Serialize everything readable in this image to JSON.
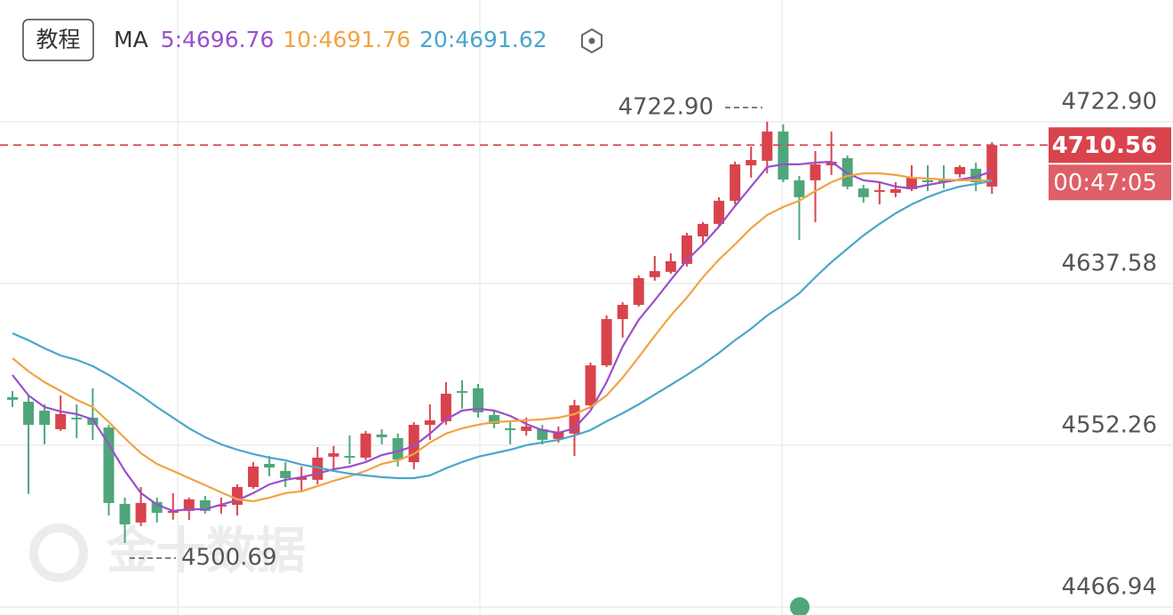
{
  "chart_data": {
    "type": "candlestick",
    "button": "教程",
    "ma_label": "MA",
    "open": [
      4577.6,
      4575.2,
      4570.5,
      4560.7,
      4566.8,
      4566.8,
      4561.6,
      4521.3,
      4511.5,
      4522.3,
      4516.6,
      4517.6,
      4523.2,
      4519.9,
      4520.8,
      4530.2,
      4542.4,
      4538.7,
      4534.0,
      4534.0,
      4546.2,
      4546.6,
      4545.7,
      4557.9,
      4556.0,
      4543.3,
      4563.0,
      4564.9,
      4580.8,
      4582.3,
      4568.2,
      4561.2,
      4559.8,
      4560.7,
      4555.6,
      4558.4,
      4573.3,
      4594.4,
      4618.8,
      4626.3,
      4640.9,
      4643.7,
      4647.9,
      4662.4,
      4669.0,
      4681.2,
      4699.9,
      4702.3,
      4717.7,
      4692.0,
      4692.0,
      4699.9,
      4703.7,
      4687.7,
      4685.9,
      4685.4,
      4687.3,
      4692.0,
      4692.0,
      4695.2,
      4698.1,
      4688.7
    ],
    "high": [
      4580.8,
      4578.5,
      4573.8,
      4578.5,
      4573.8,
      4582.3,
      4563.0,
      4524.6,
      4530.2,
      4524.6,
      4526.9,
      4524.6,
      4525.5,
      4524.6,
      4531.6,
      4543.3,
      4546.6,
      4543.3,
      4541.0,
      4551.3,
      4551.8,
      4557.4,
      4559.8,
      4560.7,
      4558.4,
      4564.4,
      4573.8,
      4585.5,
      4586.5,
      4584.6,
      4570.5,
      4564.4,
      4566.8,
      4563.0,
      4562.1,
      4576.2,
      4595.8,
      4620.7,
      4627.7,
      4641.8,
      4652.1,
      4653.5,
      4664.3,
      4669.9,
      4683.1,
      4701.8,
      4709.8,
      4722.9,
      4721.5,
      4694.3,
      4707.4,
      4717.7,
      4705.1,
      4689.6,
      4691.0,
      4691.0,
      4699.9,
      4699.9,
      4699.9,
      4699.9,
      4701.3,
      4712.1
    ],
    "low": [
      4572.4,
      4526.5,
      4552.7,
      4559.8,
      4556.0,
      4555.1,
      4515.2,
      4500.69,
      4509.6,
      4511.5,
      4512.9,
      4512.9,
      4516.2,
      4516.2,
      4515.2,
      4529.3,
      4535.9,
      4530.2,
      4527.9,
      4531.6,
      4539.6,
      4542.4,
      4544.3,
      4552.7,
      4541.0,
      4539.6,
      4555.1,
      4563.0,
      4571.5,
      4566.8,
      4561.2,
      4552.7,
      4557.4,
      4552.7,
      4553.7,
      4546.6,
      4571.5,
      4593.5,
      4609.0,
      4625.4,
      4639.0,
      4642.7,
      4646.5,
      4658.2,
      4667.6,
      4679.3,
      4693.4,
      4695.7,
      4691.0,
      4660.5,
      4669.9,
      4694.8,
      4687.3,
      4680.2,
      4679.3,
      4683.1,
      4686.3,
      4686.3,
      4687.7,
      4693.4,
      4686.3,
      4684.9
    ],
    "close": [
      4576.2,
      4563.0,
      4563.0,
      4568.7,
      4565.9,
      4563.0,
      4521.8,
      4510.5,
      4521.8,
      4516.6,
      4517.6,
      4523.7,
      4517.6,
      4520.8,
      4530.2,
      4541.0,
      4540.5,
      4534.9,
      4535.4,
      4545.7,
      4548.0,
      4545.7,
      4558.4,
      4556.5,
      4544.7,
      4563.0,
      4565.4,
      4579.4,
      4579.9,
      4569.6,
      4563.5,
      4560.2,
      4562.1,
      4555.1,
      4559.3,
      4573.3,
      4594.4,
      4618.8,
      4626.3,
      4640.4,
      4644.1,
      4649.3,
      4662.9,
      4669.0,
      4681.2,
      4700.4,
      4702.7,
      4717.7,
      4692.4,
      4683.1,
      4700.4,
      4701.8,
      4688.7,
      4683.1,
      4686.8,
      4687.3,
      4693.4,
      4691.0,
      4691.0,
      4699.0,
      4691.0,
      4710.56
    ],
    "up_color": "#d9434c",
    "down_color": "#4fa67a",
    "series": [
      {
        "name": "5:4696.76",
        "color": "#9b4fcb",
        "values": [
          4589.3,
          4578.5,
          4572.4,
          4570.1,
          4568.7,
          4565.9,
          4552.7,
          4538.7,
          4527.0,
          4520.9,
          4517.6,
          4518.5,
          4518.5,
          4520.9,
          4523.2,
          4527.0,
          4531.6,
          4534.0,
          4535.4,
          4537.3,
          4539.6,
          4541.0,
          4543.4,
          4547.1,
          4549.0,
          4551.8,
          4558.4,
          4565.9,
          4570.5,
          4571.5,
          4570.5,
          4567.7,
          4563.5,
          4560.2,
          4558.8,
          4561.2,
          4570.5,
          4585.5,
          4604.3,
          4618.4,
          4628.7,
          4639.5,
          4649.8,
          4658.2,
          4667.6,
          4678.4,
          4688.7,
          4699.0,
          4700.4,
          4700.4,
          4701.3,
          4701.8,
          4695.7,
          4692.0,
          4691.0,
          4688.7,
          4687.7,
          4689.6,
          4691.0,
          4692.4,
          4693.8,
          4696.76
        ]
      },
      {
        "name": "10:4691.76",
        "color": "#f0a443",
        "values": [
          4598.2,
          4591.2,
          4585.5,
          4580.9,
          4576.2,
          4572.4,
          4564.5,
          4556.0,
          4548.0,
          4542.4,
          4538.7,
          4534.9,
          4531.2,
          4527.4,
          4523.7,
          4522.7,
          4524.6,
          4527.0,
          4527.9,
          4530.7,
          4533.5,
          4535.9,
          4538.7,
          4542.4,
          4544.3,
          4547.6,
          4553.7,
          4558.4,
          4561.2,
          4563.0,
          4564.5,
          4564.9,
          4565.4,
          4565.9,
          4566.8,
          4568.7,
          4572.4,
          4578.5,
          4587.9,
          4598.7,
          4609.9,
          4620.7,
          4630.1,
          4640.9,
          4650.2,
          4658.2,
          4666.7,
          4673.7,
          4677.9,
          4681.2,
          4686.3,
          4691.0,
          4694.3,
          4695.7,
          4695.7,
          4694.8,
          4693.4,
          4692.9,
          4692.4,
          4692.0,
          4692.0,
          4691.76
        ]
      },
      {
        "name": "20:4691.62",
        "color": "#4aa6cc",
        "values": [
          4611.3,
          4607.6,
          4603.4,
          4599.6,
          4597.3,
          4594.0,
          4589.3,
          4584.1,
          4578.5,
          4572.4,
          4566.8,
          4561.2,
          4556.5,
          4552.7,
          4549.9,
          4547.6,
          4545.7,
          4544.3,
          4542.0,
          4540.5,
          4538.7,
          4537.3,
          4536.3,
          4535.4,
          4534.9,
          4534.9,
          4536.3,
          4540.1,
          4543.4,
          4546.2,
          4548.0,
          4549.9,
          4552.3,
          4553.7,
          4555.1,
          4557.4,
          4560.2,
          4564.9,
          4569.1,
          4573.8,
          4579.0,
          4584.1,
          4589.3,
          4594.9,
          4601.0,
          4607.6,
          4613.7,
          4620.7,
          4626.3,
          4632.4,
          4640.9,
          4648.8,
          4655.9,
          4662.9,
          4669.0,
          4674.6,
          4679.3,
          4683.1,
          4686.3,
          4688.7,
          4690.1,
          4691.62
        ]
      }
    ],
    "ylim": [
      4462.7,
      4787.1
    ],
    "yticks": [
      {
        "value": 4722.9,
        "label": "4722.90"
      },
      4637.58,
      4552.26,
      4466.94
    ],
    "grid": true,
    "high_annotation": {
      "value": 4722.9,
      "label": "4722.90"
    },
    "low_annotation": 4500.69,
    "last_price": 4710.56,
    "countdown": "00:47:05",
    "watermark": "金十数据"
  }
}
